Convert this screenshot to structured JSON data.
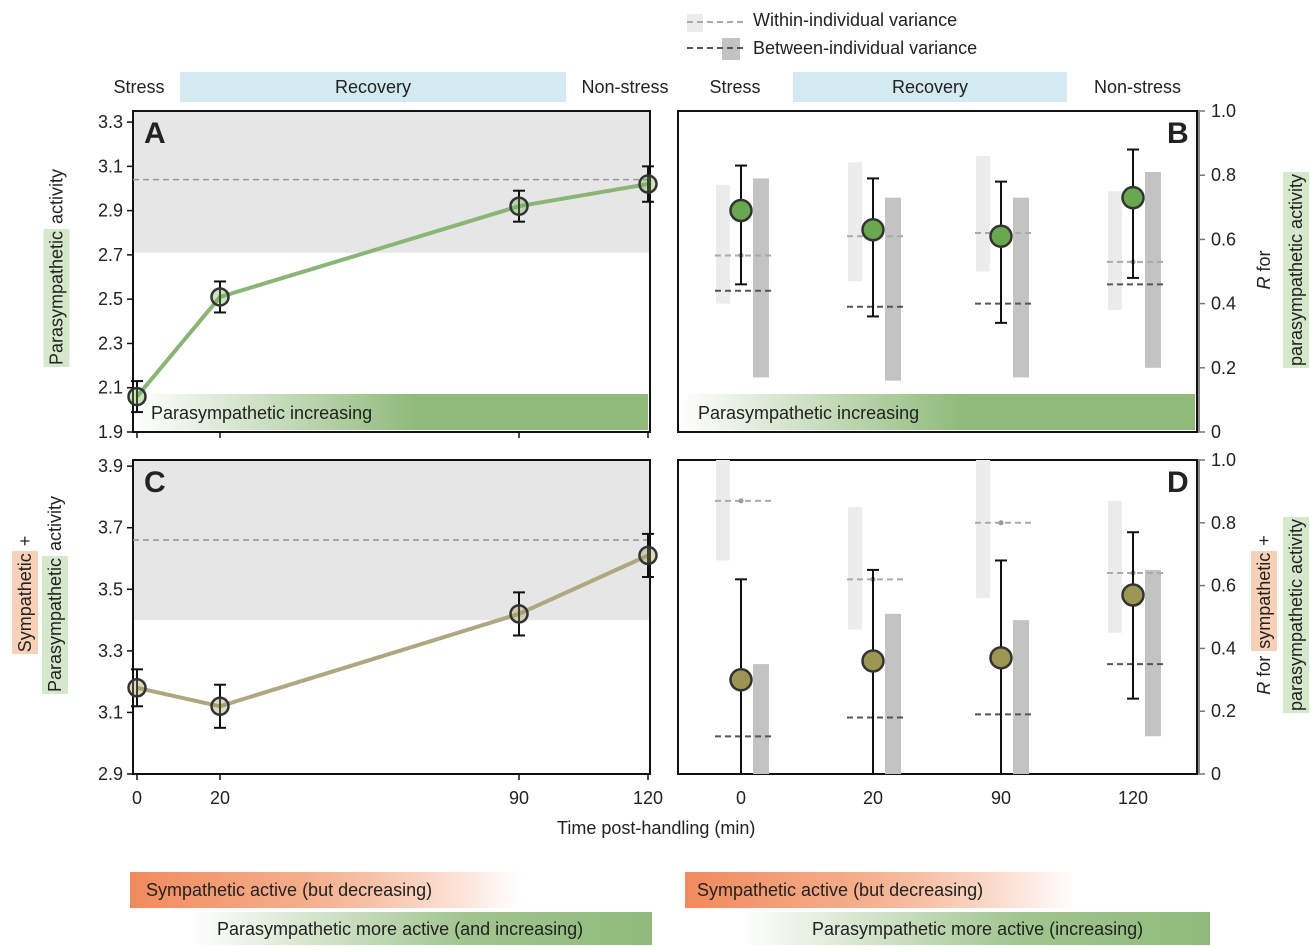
{
  "legend": {
    "within": "Within-individual variance",
    "between": "Between-individual variance"
  },
  "phases": {
    "stress": "Stress",
    "recovery": "Recovery",
    "nonstress": "Non-stress"
  },
  "xlabel": "Time post-handling (min)",
  "bottom_bars": {
    "left_symp": "Sympathetic active (but decreasing)",
    "left_para": "Parasympathetic more active (and increasing)",
    "right_symp": "Sympathetic active (but decreasing)",
    "right_para": "Parasympathetic more active (increasing)"
  },
  "left_ylabels": {
    "a_word1": "Parasympathetic",
    "a_word2": " activity",
    "c_line1_word": "Sympathetic",
    "c_line1_plus": " +",
    "c_line2_word": "Parasympathetic",
    "c_line2_rest": " activity"
  },
  "right_ylabels": {
    "b_r": "R",
    "b_rest": " for",
    "b_line2": "parasympathetic activity",
    "d_r": "R",
    "d_for": " for ",
    "d_symp": "sympathetic",
    "d_plus": " +",
    "d_line2": "parasympathetic activity"
  },
  "colors": {
    "green_line": "#8ab576",
    "green_marker": "#6aa84f",
    "olive_line": "#aea77f",
    "olive_marker": "#9c9652",
    "band_grey": "#e6e6e6",
    "recovery_blue": "#d3eaf0",
    "green_label_bg": "#d6e8cc",
    "orange_label_bg": "#f9d0b8",
    "orange": "#f08a5c",
    "green_bar": "#8fba7a"
  },
  "chart_data": [
    {
      "panel": "A",
      "type": "line",
      "annotation": "Parasympathetic increasing",
      "x": [
        0,
        20,
        90,
        120
      ],
      "xticks": [
        "0",
        "20",
        "90",
        "120"
      ],
      "y": [
        2.06,
        2.51,
        2.92,
        3.02
      ],
      "err": [
        0.07,
        0.07,
        0.07,
        0.08
      ],
      "ylim": [
        1.9,
        3.35
      ],
      "yticks": [
        1.9,
        2.1,
        2.3,
        2.5,
        2.7,
        2.9,
        3.1,
        3.3
      ],
      "reference_line": 3.04,
      "reference_band": [
        2.71,
        3.35
      ]
    },
    {
      "panel": "B",
      "type": "scatter",
      "annotation": "Parasympathetic increasing",
      "categories": [
        "0",
        "20",
        "90",
        "120"
      ],
      "R": [
        0.69,
        0.63,
        0.61,
        0.73
      ],
      "R_ci": [
        [
          0.46,
          0.83
        ],
        [
          0.36,
          0.79
        ],
        [
          0.34,
          0.78
        ],
        [
          0.48,
          0.88
        ]
      ],
      "within_variance": [
        {
          "low": 0.4,
          "high": 0.77,
          "mean": 0.55
        },
        {
          "low": 0.47,
          "high": 0.84,
          "mean": 0.61
        },
        {
          "low": 0.5,
          "high": 0.86,
          "mean": 0.62
        },
        {
          "low": 0.38,
          "high": 0.75,
          "mean": 0.53
        }
      ],
      "between_variance": [
        {
          "low": 0.17,
          "high": 0.79,
          "mean": 0.44
        },
        {
          "low": 0.16,
          "high": 0.73,
          "mean": 0.39
        },
        {
          "low": 0.17,
          "high": 0.73,
          "mean": 0.4
        },
        {
          "low": 0.2,
          "high": 0.81,
          "mean": 0.46
        }
      ],
      "ylim": [
        0,
        1.0
      ],
      "yticks": [
        0,
        0.2,
        0.4,
        0.6,
        0.8,
        1.0
      ]
    },
    {
      "panel": "C",
      "type": "line",
      "x": [
        0,
        20,
        90,
        120
      ],
      "xticks": [
        "0",
        "20",
        "90",
        "120"
      ],
      "y": [
        3.18,
        3.12,
        3.42,
        3.61
      ],
      "err": [
        0.06,
        0.07,
        0.07,
        0.07
      ],
      "ylim": [
        2.9,
        3.92
      ],
      "yticks": [
        2.9,
        3.1,
        3.3,
        3.5,
        3.7,
        3.9
      ],
      "reference_line": 3.66,
      "reference_band": [
        3.4,
        3.92
      ]
    },
    {
      "panel": "D",
      "type": "scatter",
      "categories": [
        "0",
        "20",
        "90",
        "120"
      ],
      "R": [
        0.3,
        0.36,
        0.37,
        0.57
      ],
      "R_ci": [
        [
          0.0,
          0.62
        ],
        [
          0.0,
          0.65
        ],
        [
          0.0,
          0.68
        ],
        [
          0.24,
          0.77
        ]
      ],
      "within_variance": [
        {
          "low": 0.68,
          "high": 1.0,
          "mean": 0.87
        },
        {
          "low": 0.46,
          "high": 0.85,
          "mean": 0.62
        },
        {
          "low": 0.56,
          "high": 1.0,
          "mean": 0.8
        },
        {
          "low": 0.45,
          "high": 0.87,
          "mean": 0.64
        }
      ],
      "between_variance": [
        {
          "low": 0.0,
          "high": 0.35,
          "mean": 0.12
        },
        {
          "low": 0.0,
          "high": 0.51,
          "mean": 0.18
        },
        {
          "low": 0.0,
          "high": 0.49,
          "mean": 0.19
        },
        {
          "low": 0.12,
          "high": 0.65,
          "mean": 0.35
        }
      ],
      "ylim": [
        0,
        1.0
      ],
      "yticks": [
        0,
        0.2,
        0.4,
        0.6,
        0.8,
        1.0
      ]
    }
  ]
}
